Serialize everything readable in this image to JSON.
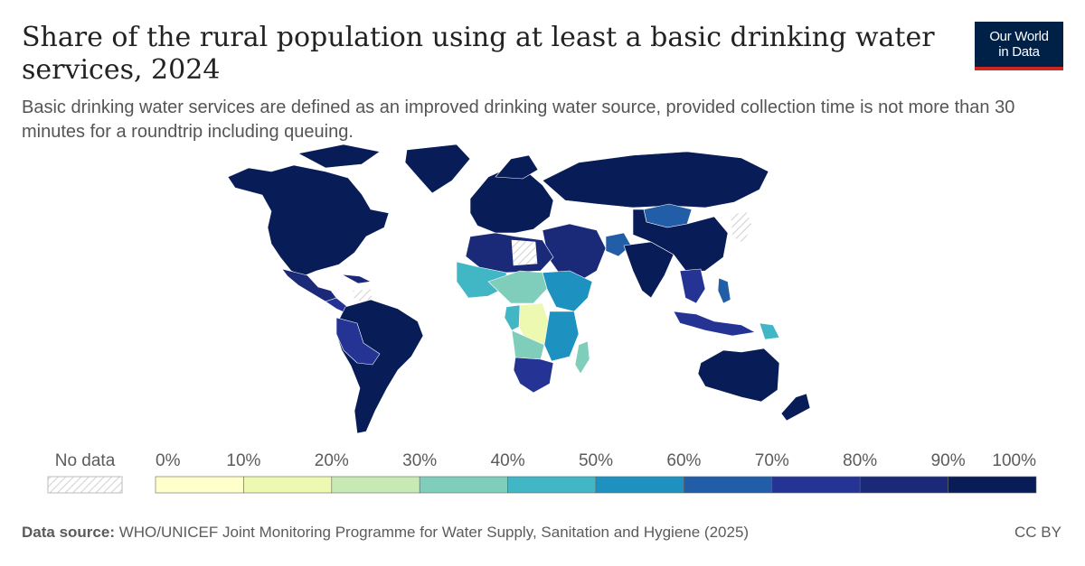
{
  "header": {
    "title": "Share of the rural population using at least a basic drinking water services, 2024",
    "subtitle": "Basic drinking water services are defined as an improved drinking water source, provided collection time is not more than 30 minutes for a roundtrip including queuing."
  },
  "logo": {
    "line1": "Our World",
    "line2": "in Data",
    "bg_color": "#002147",
    "accent_color": "#ce261e"
  },
  "legend": {
    "no_data_label": "No data",
    "ticks": [
      "0%",
      "10%",
      "20%",
      "30%",
      "40%",
      "50%",
      "60%",
      "70%",
      "80%",
      "90%",
      "100%"
    ],
    "bins": [
      {
        "range": "0–10%",
        "color": "#ffffcc"
      },
      {
        "range": "10–20%",
        "color": "#edf8b1"
      },
      {
        "range": "20–30%",
        "color": "#c7e9b4"
      },
      {
        "range": "30–40%",
        "color": "#7fcdbb"
      },
      {
        "range": "40–50%",
        "color": "#41b6c4"
      },
      {
        "range": "50–60%",
        "color": "#1d91c0"
      },
      {
        "range": "60–70%",
        "color": "#225ea8"
      },
      {
        "range": "70–80%",
        "color": "#253494"
      },
      {
        "range": "80–90%",
        "color": "#1a2a78"
      },
      {
        "range": "90–100%",
        "color": "#081d58"
      }
    ]
  },
  "footer": {
    "source_label": "Data source:",
    "source_text": "WHO/UNICEF Joint Monitoring Programme for Water Supply, Sanitation and Hygiene (2025)",
    "license": "CC BY"
  },
  "chart_data": {
    "type": "choropleth",
    "metric": "Share of rural population using at least basic drinking water services",
    "year": 2024,
    "scale": [
      0,
      100
    ],
    "unit": "%",
    "regions": [
      {
        "region": "North America",
        "value_range": "90–100%",
        "color": "#081d58"
      },
      {
        "region": "Central America & Caribbean",
        "value_range": "80–100%",
        "color": "#1a2a78"
      },
      {
        "region": "South America",
        "value_range": "80–100%",
        "color": "#081d58"
      },
      {
        "region": "Europe",
        "value_range": "90–100%",
        "color": "#081d58"
      },
      {
        "region": "Russia & Central Asia",
        "value_range": "90–100%",
        "color": "#081d58"
      },
      {
        "region": "Mongolia",
        "value_range": "60–70%",
        "color": "#225ea8"
      },
      {
        "region": "North Africa",
        "value_range": "80–100%",
        "color": "#1a2a78"
      },
      {
        "region": "Sahel / West Africa",
        "value_range": "40–70%",
        "color": "#41b6c4"
      },
      {
        "region": "Central Africa (DR Congo)",
        "value_range": "0–20%",
        "color": "#edf8b1"
      },
      {
        "region": "East Africa",
        "value_range": "40–60%",
        "color": "#1d91c0"
      },
      {
        "region": "Angola / Zambia",
        "value_range": "30–40%",
        "color": "#7fcdbb"
      },
      {
        "region": "Southern Africa",
        "value_range": "70–80%",
        "color": "#253494"
      },
      {
        "region": "Madagascar",
        "value_range": "30–40%",
        "color": "#7fcdbb"
      },
      {
        "region": "Middle East & South Asia",
        "value_range": "80–100%",
        "color": "#1a2a78"
      },
      {
        "region": "China & East Asia",
        "value_range": "90–100%",
        "color": "#081d58"
      },
      {
        "region": "Southeast Asia",
        "value_range": "70–90%",
        "color": "#253494"
      },
      {
        "region": "Papua New Guinea",
        "value_range": "40–50%",
        "color": "#41b6c4"
      },
      {
        "region": "Australia & New Zealand",
        "value_range": "90–100%",
        "color": "#081d58"
      }
    ]
  }
}
